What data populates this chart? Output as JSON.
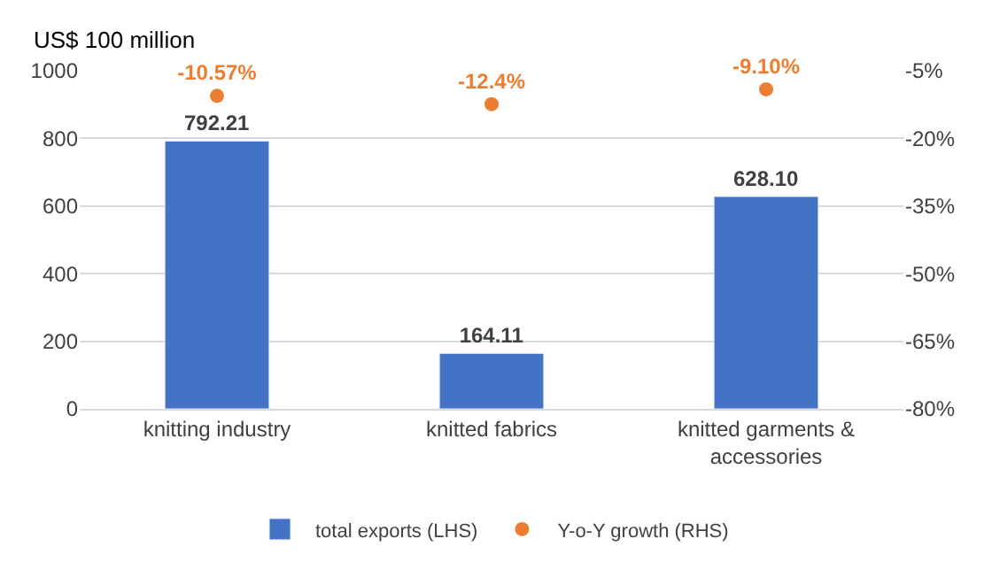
{
  "chart_data": {
    "type": "bar",
    "ylabel": "US$ 100 million",
    "categories": [
      "knitting industry",
      "knitted fabrics",
      "knitted garments & accessories"
    ],
    "series": [
      {
        "name": "total exports (LHS)",
        "color": "#4472c4",
        "values": [
          792.21,
          164.11,
          628.1
        ],
        "value_labels": [
          "792.21",
          "164.11",
          "628.10"
        ]
      },
      {
        "name": "Y-o-Y growth (RHS)",
        "type": "scatter",
        "axis": "y2",
        "color": "#ed7d31",
        "marker": "circle",
        "values": [
          -10.57,
          -12.4,
          -9.1
        ],
        "value_labels": [
          "-10.57%",
          "-12.4%",
          "-9.10%"
        ]
      }
    ],
    "ylim": [
      0,
      1000
    ],
    "yticks": [
      0,
      200,
      400,
      600,
      800,
      1000
    ],
    "y2lim": [
      -80,
      -5
    ],
    "y2ticks": [
      {
        "value": -80,
        "label": "-80%"
      },
      {
        "value": -65,
        "label": "-65%"
      },
      {
        "value": -50,
        "label": "-50%"
      },
      {
        "value": -35,
        "label": "-35%"
      },
      {
        "value": -20,
        "label": "-20%"
      },
      {
        "value": -5,
        "label": "-5%"
      }
    ],
    "grid": "y",
    "legend": "bottom"
  }
}
